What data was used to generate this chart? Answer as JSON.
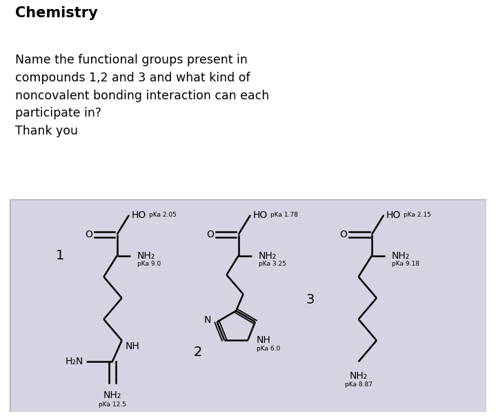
{
  "title": "Chemistry",
  "question_lines": [
    "Name the functional groups present in",
    "compounds 1,2 and 3 and what kind of",
    "noncovalent bonding interaction can each",
    "participate in?",
    "Thank you"
  ],
  "bg_color": "#ffffff",
  "panel_bg": "#d4d4e2",
  "title_fontsize": 15,
  "question_fontsize": 12.5,
  "label_fontsize": 10,
  "small_fontsize": 6.5
}
